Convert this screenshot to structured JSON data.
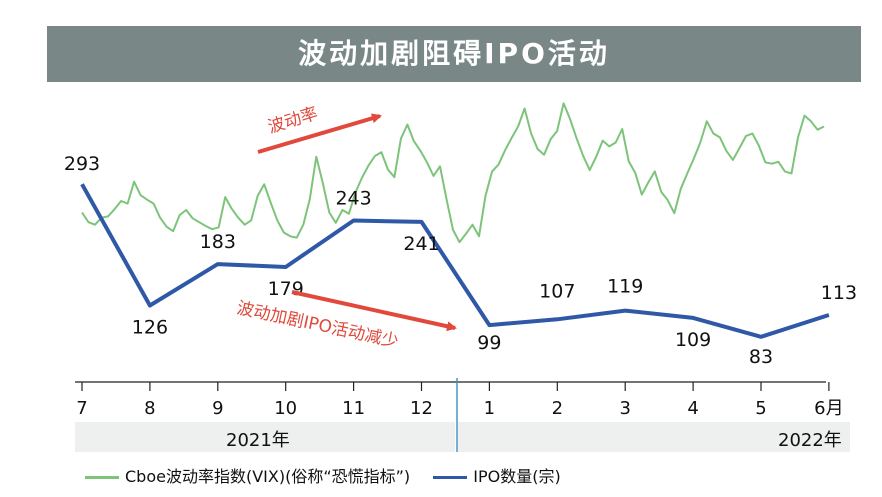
{
  "title": "波动加剧阻碍IPO活动",
  "chart_data": {
    "type": "line",
    "x_labels": [
      "7",
      "8",
      "9",
      "10",
      "11",
      "12",
      "1",
      "2",
      "3",
      "4",
      "5",
      "6月"
    ],
    "years": {
      "left": "2021年",
      "right": "2022年"
    },
    "series": [
      {
        "name": "IPO数量(宗)",
        "color": "#2f58a6",
        "values": [
          293,
          126,
          183,
          179,
          243,
          241,
          99,
          107,
          119,
          109,
          83,
          113
        ],
        "labels": [
          "293",
          "126",
          "183",
          "179",
          "243",
          "241",
          "99",
          "107",
          "119",
          "109",
          "83",
          "113"
        ]
      },
      {
        "name": "Cboe波动率指数(VIX)(俗称“恐慌指标”)",
        "color": "#7dc47a",
        "values": [
          19.7,
          18.2,
          17.8,
          18.9,
          19.1,
          20.2,
          21.5,
          21.1,
          24.5,
          22.4,
          21.7,
          21.1,
          18.9,
          17.5,
          16.8,
          19.3,
          20.1,
          18.8,
          18.2,
          17.6,
          17.1,
          17.4,
          22.1,
          20.3,
          18.9,
          17.8,
          18.5,
          22.3,
          24.1,
          21.2,
          18.5,
          16.6,
          16.0,
          15.8,
          17.8,
          21.8,
          28.4,
          24.3,
          19.7,
          18.1,
          20.1,
          19.5,
          22.8,
          25.1,
          27.0,
          28.5,
          29.1,
          26.4,
          25.2,
          31.2,
          33.4,
          30.8,
          29.3,
          27.5,
          25.4,
          26.9,
          21.8,
          17.0,
          15.1,
          16.4,
          17.8,
          16.0,
          22.3,
          26.1,
          27.2,
          29.4,
          31.3,
          33.1,
          35.9,
          32.0,
          29.6,
          28.7,
          31.1,
          32.4,
          36.7,
          34.2,
          31.2,
          28.5,
          26.3,
          28.4,
          30.9,
          30.0,
          30.6,
          32.7,
          27.7,
          25.9,
          22.5,
          24.4,
          26.1,
          22.9,
          21.6,
          19.6,
          23.4,
          25.8,
          28.1,
          30.6,
          33.9,
          32.0,
          31.4,
          29.3,
          27.9,
          29.7,
          31.6,
          32.0,
          30.1,
          27.5,
          27.3,
          27.6,
          26.1,
          25.8,
          31.4,
          34.8,
          33.9,
          32.6,
          33.1
        ],
        "ylim": [
          12,
          38
        ]
      }
    ],
    "ipo_ylim": [
      40,
      340
    ],
    "annotations": [
      {
        "text": "波动率",
        "color": "#e0493b"
      },
      {
        "text": "波动加剧IPO活动减少",
        "color": "#e0493b"
      }
    ]
  },
  "legend": {
    "vix_label": "Cboe波动率指数(VIX)(俗称“恐慌指标”)",
    "ipo_label": "IPO数量(宗)"
  }
}
